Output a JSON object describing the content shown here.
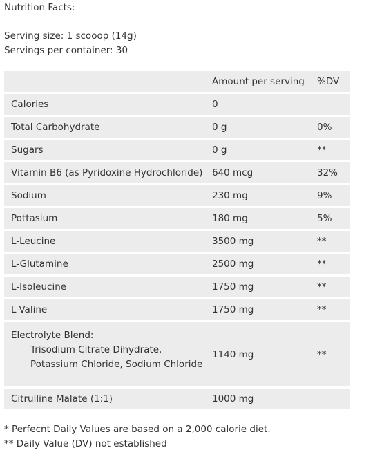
{
  "title": "Nutrition Facts:",
  "serving_size": "Serving size: 1 scooop (14g)",
  "servings_per_container": "Servings per container: 30",
  "table": {
    "headers": [
      "",
      "Amount per serving",
      "%DV"
    ],
    "rows": [
      {
        "name": "Calories",
        "amount": "0",
        "dv": ""
      },
      {
        "name": "Total Carbohydrate",
        "amount": "0 g",
        "dv": "0%"
      },
      {
        "name": "Sugars",
        "amount": "0 g",
        "dv": "**"
      },
      {
        "name": "Vitamin B6 (as Pyridoxine Hydrochloride)",
        "amount": "640 mcg",
        "dv": "32%"
      },
      {
        "name": "Sodium",
        "amount": "230 mg",
        "dv": "9%"
      },
      {
        "name": "Pottasium",
        "amount": "180 mg",
        "dv": "5%"
      },
      {
        "name": "L-Leucine",
        "amount": "3500 mg",
        "dv": "**"
      },
      {
        "name": "L-Glutamine",
        "amount": "2500 mg",
        "dv": "**"
      },
      {
        "name": "L-Isoleucine",
        "amount": "1750 mg",
        "dv": "**"
      },
      {
        "name": "L-Valine",
        "amount": "1750 mg",
        "dv": "**"
      },
      {
        "name": "Electrolyte Blend:",
        "sub_lines": [
          "Trisodium Citrate Dihydrate,",
          "Potassium Chloride, Sodium Chloride"
        ],
        "amount": "1140 mg",
        "dv": "**"
      },
      {
        "name": "Citrulline Malate (1:1)",
        "amount": "1000 mg",
        "dv": ""
      }
    ]
  },
  "footnotes": [
    "* Perfecnt Daily Values are based on a 2,000 calorie diet.",
    "** Daily Value (DV) not established"
  ]
}
